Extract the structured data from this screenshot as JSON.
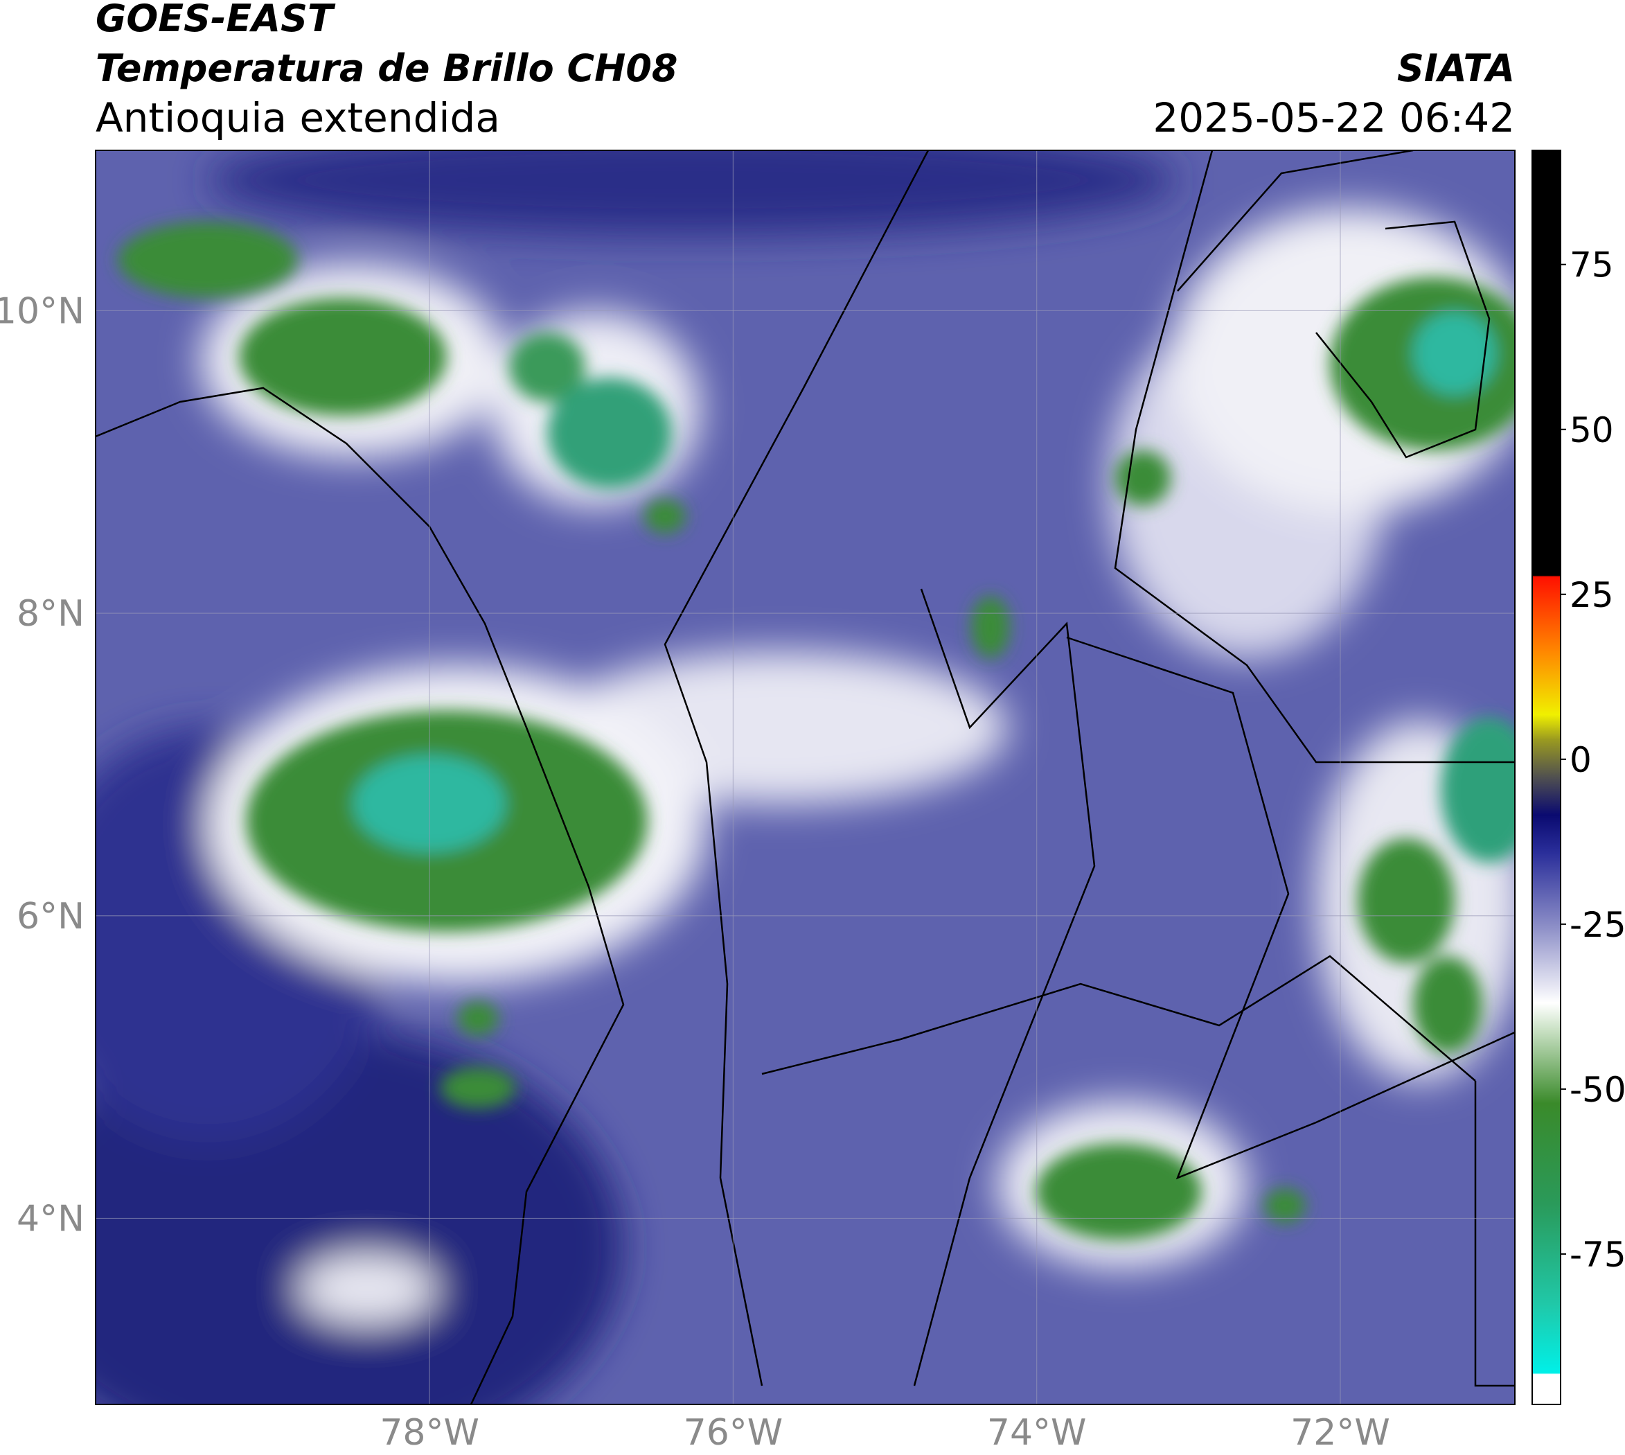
{
  "header": {
    "satellite": "GOES-EAST",
    "product": "Temperatura de Brillo CH08",
    "region": "Antioquia extendida",
    "source": "SIATA",
    "datetime": "2025-05-22 06:42"
  },
  "map": {
    "xlim": [
      -80.2,
      -70.85
    ],
    "ylim": [
      2.77,
      11.06
    ],
    "grid": true,
    "xticks": [
      {
        "value": -78,
        "label": "78°W"
      },
      {
        "value": -76,
        "label": "76°W"
      },
      {
        "value": -74,
        "label": "74°W"
      },
      {
        "value": -72,
        "label": "72°W"
      }
    ],
    "yticks": [
      {
        "value": 4,
        "label": "4°N"
      },
      {
        "value": 6,
        "label": "6°N"
      },
      {
        "value": 8,
        "label": "8°N"
      },
      {
        "value": 10,
        "label": "10°N"
      }
    ]
  },
  "colorbar": {
    "lim": [
      -97.8,
      92.3
    ],
    "ticks": [
      -75,
      -50,
      -25,
      0,
      25,
      50,
      75
    ]
  }
}
